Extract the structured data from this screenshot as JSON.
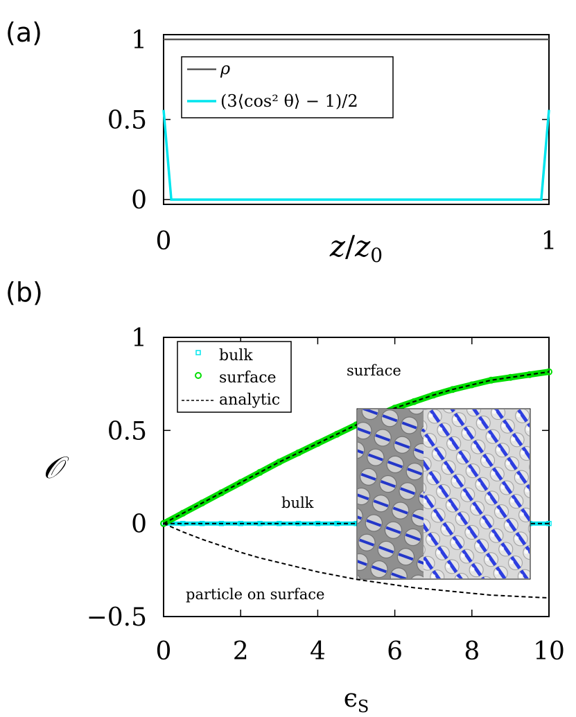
{
  "chart_data": [
    {
      "panel_label": "(a)",
      "type": "line",
      "xlabel_var": "z",
      "xlabel_sub": "0",
      "xlim": [
        0,
        1
      ],
      "ylim": [
        -0.03,
        1.03
      ],
      "xticks": [
        "0",
        "1"
      ],
      "yticks": [
        "0",
        "0.5",
        "1"
      ],
      "ytick_values": [
        0,
        0.5,
        1
      ],
      "grid": false,
      "legend_position": "top-left",
      "series": [
        {
          "name": "ρ",
          "color": "#555555",
          "x": [
            0,
            0.02,
            0.5,
            0.98,
            1
          ],
          "y": [
            1,
            1,
            1,
            1,
            1
          ]
        },
        {
          "name": "(3⟨cos² θ⟩ − 1)/2",
          "color": "#00e5ee",
          "x": [
            0,
            0.02,
            0.5,
            0.98,
            1
          ],
          "y": [
            0.56,
            0.0,
            0.0,
            0.0,
            0.56
          ]
        }
      ]
    },
    {
      "panel_label": "(b)",
      "type": "line",
      "xlabel": "ϵ",
      "xlabel_sub": "S",
      "ylabel": "𝒪",
      "xlim": [
        0,
        10
      ],
      "ylim": [
        -0.5,
        1
      ],
      "xticks": [
        "0",
        "2",
        "4",
        "6",
        "8",
        "10"
      ],
      "xtick_values": [
        0,
        2,
        4,
        6,
        8,
        10
      ],
      "yticks": [
        "−0.5",
        "0",
        "0.5",
        "1"
      ],
      "ytick_values": [
        -0.5,
        0,
        0.5,
        1
      ],
      "grid": false,
      "legend_position": "top-left",
      "legend": [
        "bulk",
        "surface",
        "analytic"
      ],
      "annotations": [
        "surface",
        "bulk",
        "particle on surface"
      ],
      "x": [
        0,
        0.5,
        1,
        1.5,
        2,
        2.5,
        3,
        3.5,
        4,
        4.5,
        5,
        5.5,
        6,
        6.5,
        7,
        7.5,
        8,
        8.5,
        9,
        9.5,
        10
      ],
      "series": [
        {
          "name": "bulk",
          "color": "#00e5ee",
          "values": [
            0,
            0,
            0,
            0,
            0,
            0,
            0,
            0,
            0,
            0,
            0,
            0,
            0,
            0,
            0,
            0,
            0,
            0,
            0,
            0,
            0
          ]
        },
        {
          "name": "surface",
          "color": "#00dd00",
          "values": [
            0.0,
            0.055,
            0.11,
            0.165,
            0.22,
            0.275,
            0.33,
            0.38,
            0.43,
            0.48,
            0.53,
            0.575,
            0.62,
            0.655,
            0.69,
            0.72,
            0.745,
            0.77,
            0.785,
            0.8,
            0.815
          ]
        },
        {
          "name": "analytic",
          "color": "#000000",
          "values": [
            0.0,
            0.055,
            0.11,
            0.165,
            0.22,
            0.275,
            0.33,
            0.38,
            0.43,
            0.48,
            0.53,
            0.575,
            0.62,
            0.655,
            0.69,
            0.72,
            0.745,
            0.77,
            0.785,
            0.8,
            0.815
          ]
        },
        {
          "name": "particle on surface",
          "color": "#000000",
          "values": [
            0,
            -0.045,
            -0.085,
            -0.12,
            -0.155,
            -0.185,
            -0.21,
            -0.235,
            -0.26,
            -0.28,
            -0.3,
            -0.315,
            -0.33,
            -0.345,
            -0.355,
            -0.365,
            -0.375,
            -0.385,
            -0.39,
            -0.395,
            -0.4
          ]
        }
      ]
    }
  ]
}
